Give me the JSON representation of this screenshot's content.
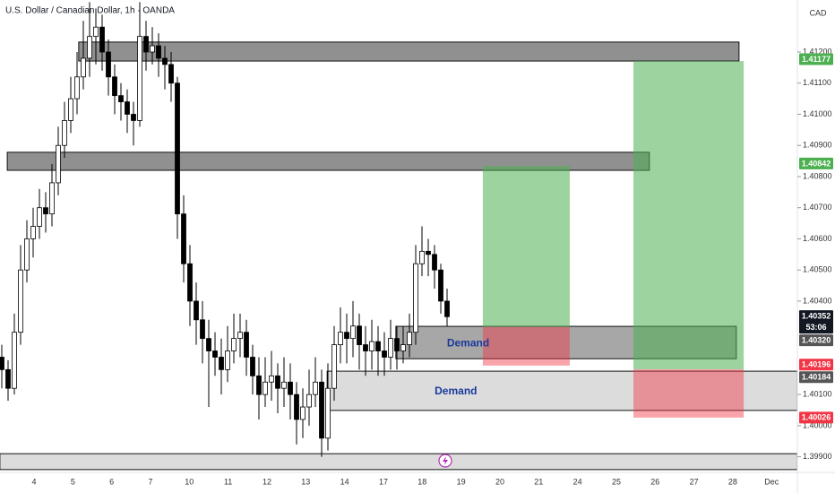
{
  "chart_data": {
    "type": "candlestick",
    "title": "U.S. Dollar / Canadian Dollar, 1h · OANDA",
    "currency": "CAD",
    "categories": [
      "4",
      "5",
      "6",
      "7",
      "10",
      "11",
      "12",
      "13",
      "14",
      "17",
      "18",
      "19",
      "20",
      "21",
      "24",
      "25",
      "26",
      "27",
      "28",
      "Dec"
    ],
    "ylim": [
      1.3985,
      1.41367
    ],
    "yticks": [
      {
        "value": 1.399,
        "label": "1.39900"
      },
      {
        "value": 1.4,
        "label": "1.40000"
      },
      {
        "value": 1.401,
        "label": "1.40100"
      },
      {
        "value": 1.404,
        "label": "1.40400"
      },
      {
        "value": 1.405,
        "label": "1.40500"
      },
      {
        "value": 1.406,
        "label": "1.40600"
      },
      {
        "value": 1.407,
        "label": "1.40700"
      },
      {
        "value": 1.408,
        "label": "1.40800"
      },
      {
        "value": 1.409,
        "label": "1.40900"
      },
      {
        "value": 1.41,
        "label": "1.41000"
      },
      {
        "value": 1.411,
        "label": "1.41100"
      },
      {
        "value": 1.412,
        "label": "1.41200"
      }
    ],
    "up_color": "#ffffff",
    "down_color": "#000000",
    "candles": {
      "open": [
        1.4022,
        1.4018,
        1.4012,
        1.403,
        1.405,
        1.406,
        1.4064,
        1.407,
        1.4068,
        1.4078,
        1.409,
        1.4098,
        1.4105,
        1.4112,
        1.4118,
        1.4125,
        1.4128,
        1.412,
        1.4112,
        1.4106,
        1.4104,
        1.41,
        1.4098,
        1.4125,
        1.412,
        1.4122,
        1.4118,
        1.4116,
        1.411,
        1.4068,
        1.4052,
        1.404,
        1.4034,
        1.4028,
        1.4024,
        1.4022,
        1.4018,
        1.4024,
        1.4028,
        1.403,
        1.4022,
        1.4016,
        1.401,
        1.4014,
        1.4016,
        1.4012,
        1.4014,
        1.401,
        1.4002,
        1.4006,
        1.401,
        1.4014,
        1.3996,
        1.4012,
        1.4026,
        1.403,
        1.4028,
        1.4032,
        1.4026,
        1.4024,
        1.4027,
        1.4024,
        1.4022,
        1.4028,
        1.4024,
        1.4026,
        1.403,
        1.4052,
        1.4056,
        1.4055,
        1.405,
        1.404
      ],
      "high": [
        1.4026,
        1.4021,
        1.4036,
        1.4058,
        1.4066,
        1.407,
        1.4076,
        1.4075,
        1.4084,
        1.4096,
        1.4104,
        1.4112,
        1.412,
        1.413,
        1.4136,
        1.4134,
        1.4132,
        1.4124,
        1.4116,
        1.411,
        1.4108,
        1.4104,
        1.4136,
        1.413,
        1.4128,
        1.4126,
        1.4122,
        1.412,
        1.4112,
        1.4074,
        1.4058,
        1.4046,
        1.404,
        1.4034,
        1.403,
        1.4028,
        1.4032,
        1.4036,
        1.4036,
        1.4034,
        1.4026,
        1.4022,
        1.4022,
        1.4024,
        1.402,
        1.4022,
        1.402,
        1.4014,
        1.4012,
        1.4018,
        1.4022,
        1.4018,
        1.402,
        1.4032,
        1.4038,
        1.4036,
        1.404,
        1.4036,
        1.4032,
        1.4034,
        1.4032,
        1.403,
        1.4034,
        1.4032,
        1.4032,
        1.4036,
        1.4058,
        1.4064,
        1.406,
        1.4058,
        1.4052,
        1.4044
      ],
      "low": [
        1.4012,
        1.4008,
        1.401,
        1.4026,
        1.4046,
        1.4054,
        1.406,
        1.4062,
        1.4064,
        1.4074,
        1.4086,
        1.4094,
        1.41,
        1.4108,
        1.4112,
        1.4116,
        1.4114,
        1.4106,
        1.41,
        1.4098,
        1.4094,
        1.409,
        1.4096,
        1.4114,
        1.4116,
        1.4112,
        1.4108,
        1.4104,
        1.406,
        1.4046,
        1.4032,
        1.4026,
        1.402,
        1.4006,
        1.4016,
        1.401,
        1.4014,
        1.402,
        1.4022,
        1.4016,
        1.401,
        1.4002,
        1.4006,
        1.4008,
        1.4004,
        1.4006,
        1.4002,
        1.3994,
        1.3996,
        1.4,
        1.4006,
        1.399,
        1.3992,
        1.4008,
        1.402,
        1.402,
        1.4022,
        1.4018,
        1.4016,
        1.4018,
        1.4016,
        1.4016,
        1.4018,
        1.4018,
        1.402,
        1.4022,
        1.4026,
        1.4048,
        1.4048,
        1.4044,
        1.4036,
        1.4032
      ],
      "close": [
        1.4018,
        1.4012,
        1.403,
        1.405,
        1.406,
        1.4064,
        1.407,
        1.4068,
        1.4078,
        1.409,
        1.4098,
        1.4105,
        1.4112,
        1.4118,
        1.4125,
        1.4128,
        1.412,
        1.4112,
        1.4106,
        1.4104,
        1.41,
        1.4098,
        1.4125,
        1.412,
        1.4122,
        1.4118,
        1.4116,
        1.411,
        1.4068,
        1.4052,
        1.404,
        1.4034,
        1.4028,
        1.4024,
        1.4022,
        1.4018,
        1.4024,
        1.4028,
        1.403,
        1.4022,
        1.4016,
        1.401,
        1.4014,
        1.4016,
        1.4012,
        1.4014,
        1.401,
        1.4002,
        1.4006,
        1.401,
        1.4014,
        1.3996,
        1.4012,
        1.4026,
        1.403,
        1.4028,
        1.4032,
        1.4026,
        1.4024,
        1.4027,
        1.4024,
        1.4022,
        1.4028,
        1.4024,
        1.4026,
        1.403,
        1.4052,
        1.4056,
        1.4055,
        1.405,
        1.404,
        1.4035
      ]
    },
    "zones": [
      {
        "x": [
          1.15,
          18.16
        ],
        "y": [
          1.41171,
          1.41232
        ],
        "color": "#6b6b6b"
      },
      {
        "x": [
          -0.69,
          15.85
        ],
        "y": [
          1.4082,
          1.40878
        ],
        "color": "#6b6b6b"
      },
      {
        "x": [
          9.32,
          18.09
        ],
        "y": [
          1.40215,
          1.40319
        ],
        "color": "#8a8a8a",
        "label": "Demand"
      },
      {
        "x": [
          7.55,
          19.66
        ],
        "y": [
          1.40049,
          1.40175
        ],
        "color": "#d0d0d0",
        "label": "Demand"
      },
      {
        "x": [
          -0.88,
          19.66
        ],
        "y": [
          1.39859,
          1.3991
        ],
        "color": "#d0d0d0"
      }
    ],
    "positions": [
      {
        "x": [
          11.56,
          13.8
        ],
        "target": [
          1.40317,
          1.40834
        ],
        "stop": [
          1.40193,
          1.40317
        ]
      },
      {
        "x": [
          15.44,
          18.28
        ],
        "target": [
          1.40181,
          1.41171
        ],
        "stop": [
          1.40026,
          1.40181
        ]
      }
    ],
    "target_color": "#4caf50",
    "stop_color": "#f23645",
    "price_labels": [
      {
        "value": 1.41177,
        "label": "1.41177",
        "color": "#4caf50"
      },
      {
        "value": 1.40842,
        "label": "1.40842",
        "color": "#4caf50"
      },
      {
        "value": 1.40352,
        "label": "1.40352",
        "color": "#131722",
        "countdown": "53:06"
      },
      {
        "value": 1.4032,
        "label": "1.40320",
        "color": "#555555"
      },
      {
        "value": 1.40196,
        "label": "1.40196",
        "color": "#f23645"
      },
      {
        "value": 1.40184,
        "label": "1.40184",
        "color": "#555555"
      },
      {
        "value": 1.40026,
        "label": "1.40026",
        "color": "#f23645"
      }
    ]
  }
}
